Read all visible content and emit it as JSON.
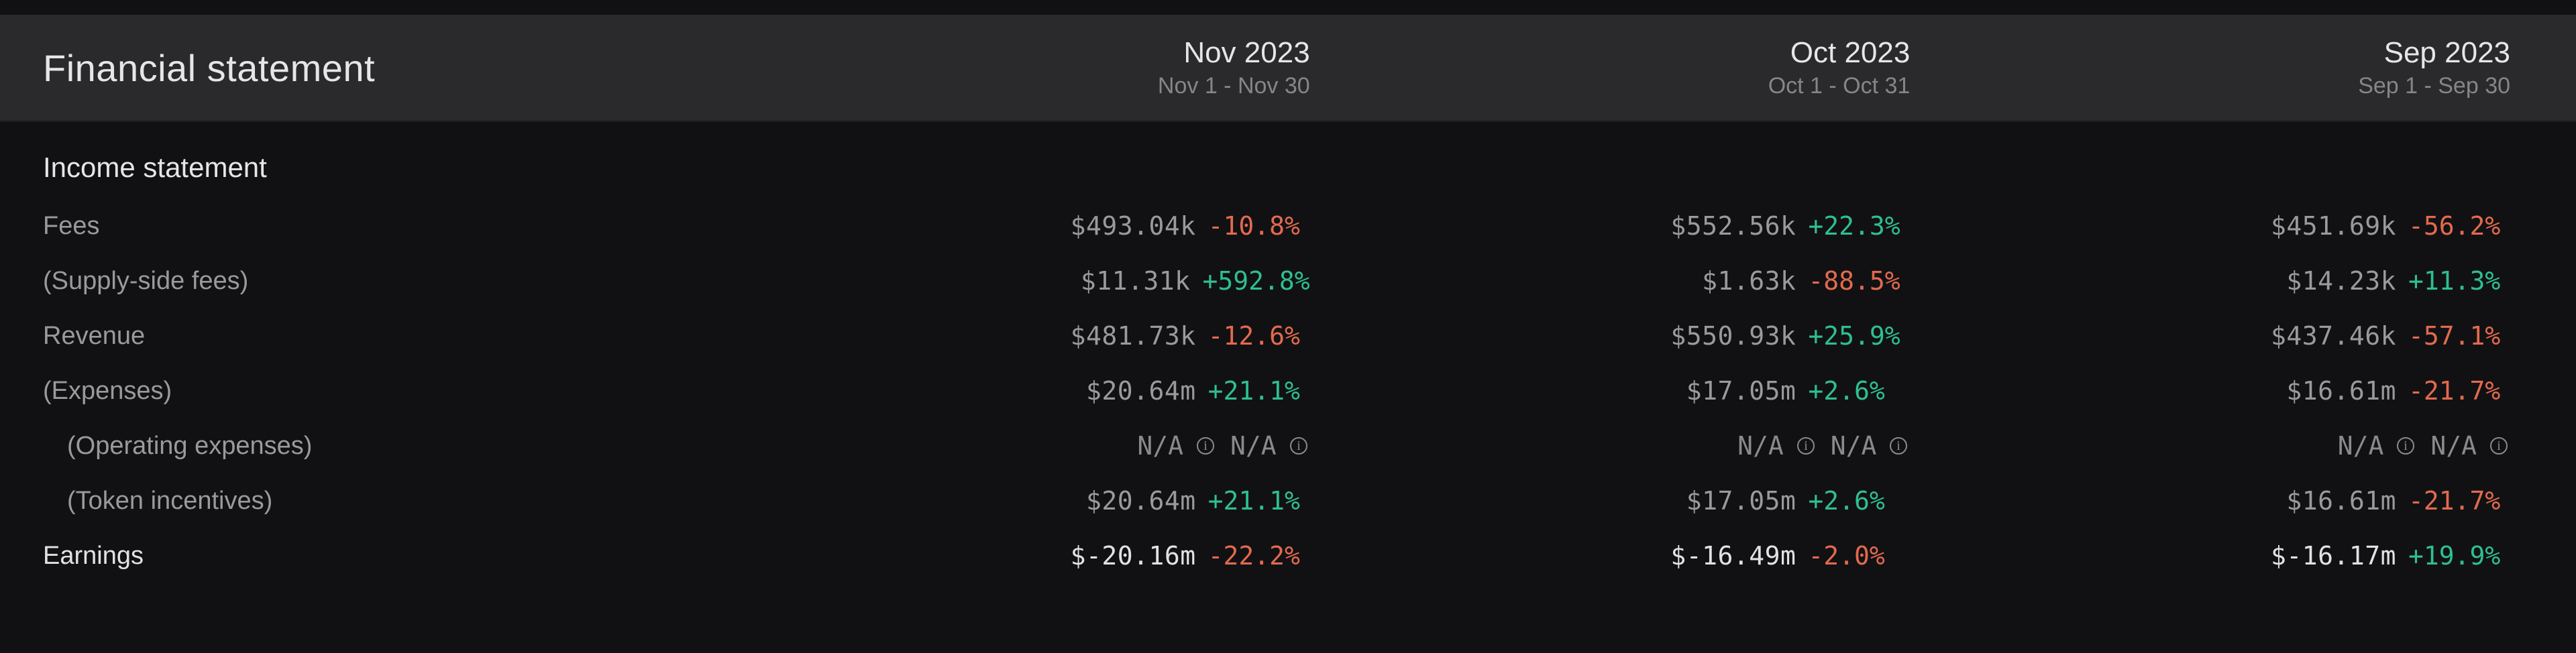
{
  "colors": {
    "background": "#111114",
    "header_bg": "#2a2a2d",
    "text_primary": "#e6e6e6",
    "text_secondary": "#9a9a9a",
    "text_muted": "#868686",
    "positive": "#2fbf8f",
    "negative": "#e36a4d"
  },
  "header": {
    "title": "Financial statement",
    "periods": [
      {
        "month": "Nov 2023",
        "range": "Nov 1 - Nov 30"
      },
      {
        "month": "Oct 2023",
        "range": "Oct 1 - Oct 31"
      },
      {
        "month": "Sep 2023",
        "range": "Sep 1 - Sep 30"
      }
    ]
  },
  "section_title": "Income statement",
  "rows": [
    {
      "label": "Fees",
      "indent": 0,
      "bold": false,
      "cells": [
        {
          "value": "$493.04k",
          "pct": "-10.8%",
          "dir": "neg"
        },
        {
          "value": "$552.56k",
          "pct": "+22.3%",
          "dir": "pos"
        },
        {
          "value": "$451.69k",
          "pct": "-56.2%",
          "dir": "neg"
        }
      ]
    },
    {
      "label": "(Supply-side fees)",
      "indent": 0,
      "bold": false,
      "cells": [
        {
          "value": "$11.31k",
          "pct": "+592.8%",
          "dir": "pos"
        },
        {
          "value": "$1.63k",
          "pct": "-88.5%",
          "dir": "neg"
        },
        {
          "value": "$14.23k",
          "pct": "+11.3%",
          "dir": "pos"
        }
      ]
    },
    {
      "label": "Revenue",
      "indent": 0,
      "bold": false,
      "cells": [
        {
          "value": "$481.73k",
          "pct": "-12.6%",
          "dir": "neg"
        },
        {
          "value": "$550.93k",
          "pct": "+25.9%",
          "dir": "pos"
        },
        {
          "value": "$437.46k",
          "pct": "-57.1%",
          "dir": "neg"
        }
      ]
    },
    {
      "label": "(Expenses)",
      "indent": 0,
      "bold": false,
      "cells": [
        {
          "value": "$20.64m",
          "pct": "+21.1%",
          "dir": "pos"
        },
        {
          "value": "$17.05m",
          "pct": "+2.6%",
          "dir": "pos"
        },
        {
          "value": "$16.61m",
          "pct": "-21.7%",
          "dir": "neg"
        }
      ]
    },
    {
      "label": "(Operating expenses)",
      "indent": 1,
      "bold": false,
      "cells": [
        {
          "value": "N/A",
          "pct": "N/A",
          "na": true
        },
        {
          "value": "N/A",
          "pct": "N/A",
          "na": true
        },
        {
          "value": "N/A",
          "pct": "N/A",
          "na": true
        }
      ]
    },
    {
      "label": "(Token incentives)",
      "indent": 1,
      "bold": false,
      "cells": [
        {
          "value": "$20.64m",
          "pct": "+21.1%",
          "dir": "pos"
        },
        {
          "value": "$17.05m",
          "pct": "+2.6%",
          "dir": "pos"
        },
        {
          "value": "$16.61m",
          "pct": "-21.7%",
          "dir": "neg"
        }
      ]
    },
    {
      "label": "Earnings",
      "indent": 0,
      "bold": true,
      "cells": [
        {
          "value": "$-20.16m",
          "pct": "-22.2%",
          "dir": "neg"
        },
        {
          "value": "$-16.49m",
          "pct": "-2.0%",
          "dir": "neg"
        },
        {
          "value": "$-16.17m",
          "pct": "+19.9%",
          "dir": "pos"
        }
      ]
    }
  ]
}
